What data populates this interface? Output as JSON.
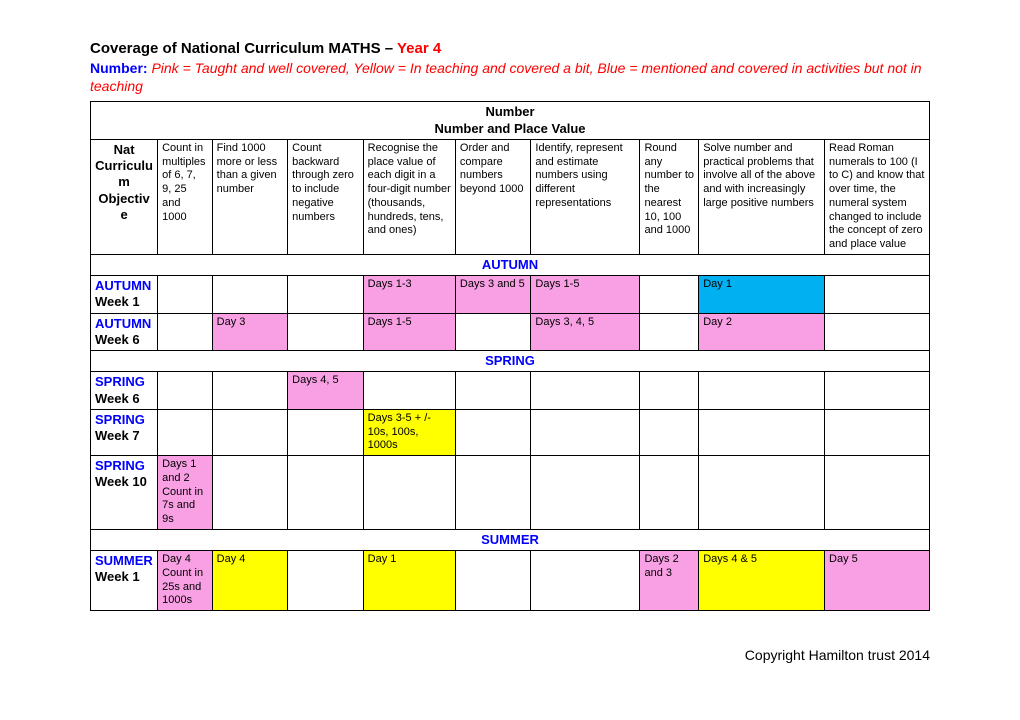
{
  "header": {
    "title_prefix": "Coverage of National Curriculum MATHS – ",
    "year": "Year 4",
    "legend_label": "Number:",
    "legend_text": "   Pink = Taught and well covered, Yellow = In teaching and covered a bit, Blue = mentioned and covered in activities but not in teaching"
  },
  "table": {
    "section_line1": "Number",
    "section_line2": "Number and Place Value",
    "col_widths_pct": [
      8,
      6.5,
      9,
      9,
      11,
      9,
      13,
      7,
      15,
      12.5
    ],
    "obj_header": "Nat Curriculum Objective",
    "objectives": [
      "Count in multiples of 6, 7, 9, 25 and 1000",
      "Find 1000 more or less than a given number",
      "Count backward through zero to include negative numbers",
      "Recognise the place value of each digit in a four-digit number (thousands, hundreds, tens, and ones)",
      "Order and compare numbers beyond 1000",
      "Identify, represent and estimate numbers using different representations",
      "Round any number to the nearest 10, 100 and 1000",
      "Solve number and practical problems that involve all of the above and with increasingly large positive numbers",
      "Read Roman numerals to 100 (I to C) and know that over time, the numeral system changed to include the concept of zero and place value"
    ],
    "seasons": {
      "autumn": "AUTUMN",
      "spring": "SPRING",
      "summer": "SUMMER"
    },
    "cell_colors": {
      "pink": "#f9a0e4",
      "yellow": "#ffff00",
      "blue": "#00b0f0"
    },
    "rows": [
      {
        "term": "AUTUMN",
        "week": "Week 1",
        "cells": [
          {
            "text": "",
            "color": ""
          },
          {
            "text": "",
            "color": ""
          },
          {
            "text": "",
            "color": ""
          },
          {
            "text": "Days 1-3",
            "color": "pink"
          },
          {
            "text": "Days 3 and 5",
            "color": "pink"
          },
          {
            "text": "Days 1-5",
            "color": "pink"
          },
          {
            "text": "",
            "color": ""
          },
          {
            "text": "Day 1",
            "color": "blue"
          },
          {
            "text": "",
            "color": ""
          }
        ]
      },
      {
        "term": "AUTUMN",
        "week": "Week 6",
        "cells": [
          {
            "text": "",
            "color": ""
          },
          {
            "text": "Day 3",
            "color": "pink"
          },
          {
            "text": "",
            "color": ""
          },
          {
            "text": "Days 1-5",
            "color": "pink"
          },
          {
            "text": "",
            "color": ""
          },
          {
            "text": "Days 3, 4, 5",
            "color": "pink"
          },
          {
            "text": "",
            "color": ""
          },
          {
            "text": "Day 2",
            "color": "pink"
          },
          {
            "text": "",
            "color": ""
          }
        ]
      },
      {
        "term": "SPRING",
        "week": "Week 6",
        "cells": [
          {
            "text": "",
            "color": ""
          },
          {
            "text": "",
            "color": ""
          },
          {
            "text": "Days 4, 5",
            "color": "pink"
          },
          {
            "text": "",
            "color": ""
          },
          {
            "text": "",
            "color": ""
          },
          {
            "text": "",
            "color": ""
          },
          {
            "text": "",
            "color": ""
          },
          {
            "text": "",
            "color": ""
          },
          {
            "text": "",
            "color": ""
          }
        ]
      },
      {
        "term": "SPRING",
        "week": "Week 7",
        "cells": [
          {
            "text": "",
            "color": ""
          },
          {
            "text": "",
            "color": ""
          },
          {
            "text": "",
            "color": ""
          },
          {
            "text": "Days 3-5 + /- 10s, 100s, 1000s",
            "color": "yellow"
          },
          {
            "text": "",
            "color": ""
          },
          {
            "text": "",
            "color": ""
          },
          {
            "text": "",
            "color": ""
          },
          {
            "text": "",
            "color": ""
          },
          {
            "text": "",
            "color": ""
          }
        ]
      },
      {
        "term": "SPRING",
        "week": "Week 10",
        "cells": [
          {
            "text": "Days 1 and 2 Count in 7s and 9s",
            "color": "pink"
          },
          {
            "text": "",
            "color": ""
          },
          {
            "text": "",
            "color": ""
          },
          {
            "text": "",
            "color": ""
          },
          {
            "text": "",
            "color": ""
          },
          {
            "text": "",
            "color": ""
          },
          {
            "text": "",
            "color": ""
          },
          {
            "text": "",
            "color": ""
          },
          {
            "text": "",
            "color": ""
          }
        ]
      },
      {
        "term": "SUMMER",
        "week": "Week 1",
        "cells": [
          {
            "text": "Day 4 Count in 25s and 1000s",
            "color": "pink"
          },
          {
            "text": "Day 4",
            "color": "yellow"
          },
          {
            "text": "",
            "color": ""
          },
          {
            "text": "Day 1",
            "color": "yellow"
          },
          {
            "text": "",
            "color": ""
          },
          {
            "text": "",
            "color": ""
          },
          {
            "text": "Days 2 and 3",
            "color": "pink"
          },
          {
            "text": "Days 4 & 5",
            "color": "yellow"
          },
          {
            "text": "Day 5",
            "color": "pink"
          }
        ]
      }
    ]
  },
  "footer": "Copyright Hamilton trust 2014"
}
